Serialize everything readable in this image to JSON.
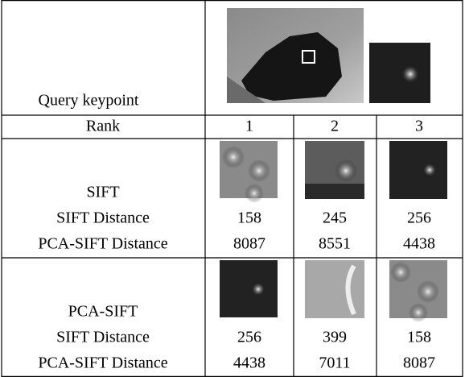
{
  "table": {
    "query_label": "Query keypoint",
    "header": [
      "Rank",
      "1",
      "2",
      "3"
    ],
    "groups": [
      {
        "name": "SIFT",
        "rows": [
          {
            "label": "SIFT Distance",
            "values": [
              158,
              245,
              256
            ]
          },
          {
            "label": "PCA-SIFT Distance",
            "values": [
              8087,
              8551,
              4438
            ]
          }
        ]
      },
      {
        "name": "PCA-SIFT",
        "rows": [
          {
            "label": "SIFT Distance",
            "values": [
              256,
              399,
              158
            ]
          },
          {
            "label": "PCA-SIFT Distance",
            "values": [
              4438,
              7011,
              8087
            ]
          }
        ]
      }
    ]
  }
}
